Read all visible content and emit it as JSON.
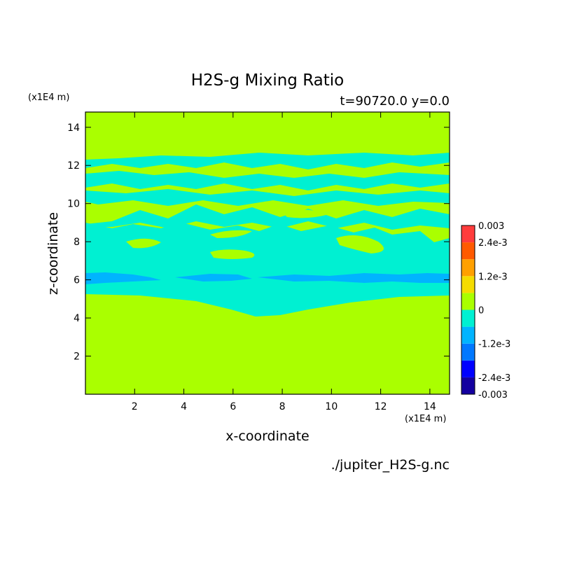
{
  "chart_data": {
    "type": "heatmap",
    "title": "H2S-g Mixing Ratio",
    "subtitle": "t=90720.0 y=0.0",
    "xlabel": "x-coordinate",
    "ylabel": "z-coordinate",
    "x_unit": "(x1E4 m)",
    "y_unit": "(x1E4 m)",
    "xlim": [
      0,
      14.8
    ],
    "ylim": [
      0,
      14.8
    ],
    "x_ticks": [
      "2",
      "4",
      "6",
      "8",
      "10",
      "12",
      "14"
    ],
    "y_ticks": [
      "2",
      "4",
      "6",
      "8",
      "10",
      "12",
      "14"
    ],
    "x_tick_values": [
      2,
      4,
      6,
      8,
      10,
      12,
      14
    ],
    "y_tick_values": [
      2,
      4,
      6,
      8,
      10,
      12,
      14
    ],
    "colorbar": {
      "levels": [
        -0.003,
        -0.0024,
        -0.0018,
        -0.0012,
        -0.0006,
        0,
        0.0006,
        0.0012,
        0.0018,
        0.0024,
        0.003
      ],
      "colors": [
        "#1400a0",
        "#0000ff",
        "#0078ff",
        "#00b4ff",
        "#00f0d2",
        "#aaff00",
        "#f5dc00",
        "#ffa000",
        "#ff5a00",
        "#ff3c3c"
      ],
      "labels": [
        {
          "value": 0.003,
          "text": "0.003"
        },
        {
          "value": 0.0024,
          "text": "2.4e-3"
        },
        {
          "value": 0.0012,
          "text": "1.2e-3"
        },
        {
          "value": 0,
          "text": "0"
        },
        {
          "value": -0.0012,
          "text": "-1.2e-3"
        },
        {
          "value": -0.0024,
          "text": "-2.4e-3"
        },
        {
          "value": -0.003,
          "text": "-0.003"
        }
      ]
    },
    "regions": [
      {
        "level": "0 to 6e-4",
        "color": "#aaff00",
        "z_range": [
          0,
          4.2
        ],
        "description": "background"
      },
      {
        "level": "-6e-4 to 0",
        "color": "#00f0d2",
        "z_range": [
          4.2,
          6.4
        ]
      },
      {
        "level": "-1.2e-3 to -6e-4",
        "color": "#00b4ff",
        "z_range": [
          5.9,
          6.4
        ]
      },
      {
        "level": "-6e-4 to 0",
        "color": "#00f0d2",
        "z_range": [
          6.4,
          12.8
        ]
      }
    ]
  },
  "file_label": "./jupiter_H2S-g.nc"
}
